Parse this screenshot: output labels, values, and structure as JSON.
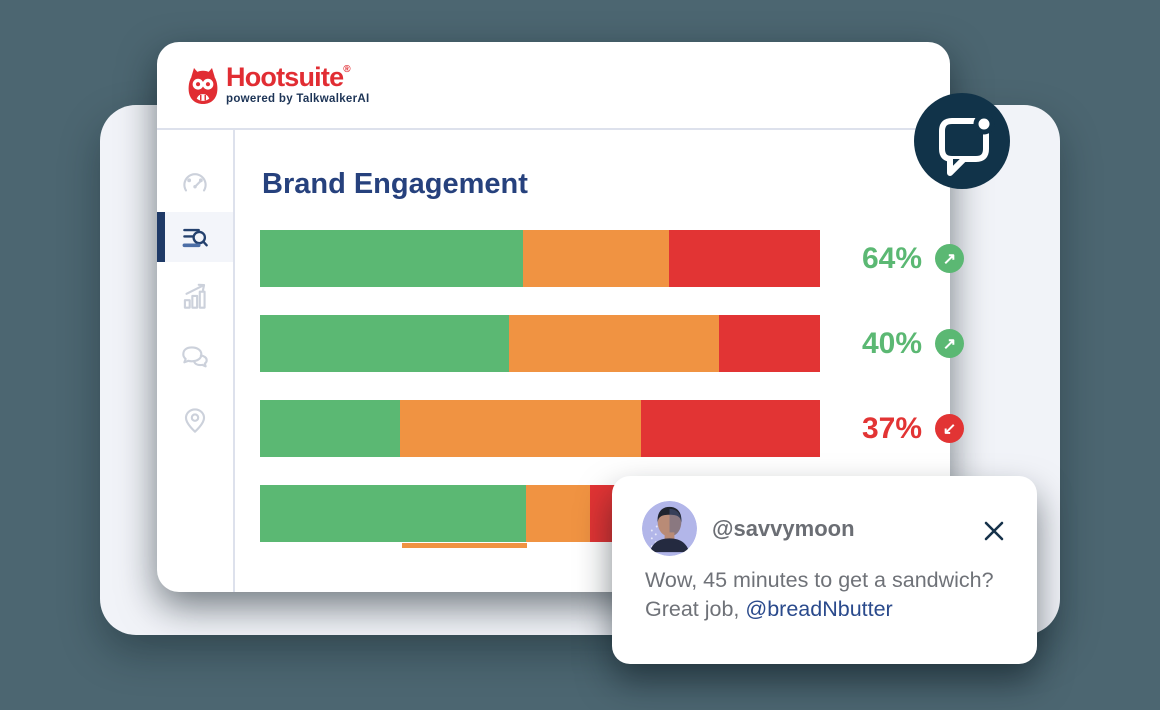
{
  "colors": {
    "background_slate": "#4c6671",
    "panel_gray": "#f1f3f8",
    "green": "#5bb873",
    "orange": "#f09342",
    "red": "#e23434",
    "brand_red": "#e12d33",
    "title_navy": "#26417d",
    "badge_navy": "#113349",
    "mention_blue": "#2a4a8c"
  },
  "header": {
    "brand": "Hootsuite",
    "registered": "®",
    "tagline": "powered by TalkwalkerAI"
  },
  "sidebar": {
    "selected_index": 1,
    "items": [
      {
        "icon": "speedometer-icon"
      },
      {
        "icon": "search-list-icon"
      },
      {
        "icon": "bar-chart-icon"
      },
      {
        "icon": "chat-bubbles-icon"
      },
      {
        "icon": "location-pin-icon"
      }
    ]
  },
  "main": {
    "title": "Brand Engagement"
  },
  "chart_data": {
    "type": "bar",
    "orientation": "horizontal-stacked",
    "segment_colors": [
      "#5bb873",
      "#f09342",
      "#e23434"
    ],
    "up_arrow": "↗",
    "down_arrow": "↙",
    "rows": [
      {
        "value": "64%",
        "trend": "up",
        "segments": [
          47,
          26,
          27
        ]
      },
      {
        "value": "40%",
        "trend": "up",
        "segments": [
          44.5,
          37.5,
          18
        ]
      },
      {
        "value": "37%",
        "trend": "down",
        "segments": [
          25,
          43,
          32
        ]
      },
      {
        "value": "",
        "trend": null,
        "segments": [
          47.5,
          11.5,
          41
        ]
      }
    ]
  },
  "notification_badge": {
    "icon": "chat-notification-icon"
  },
  "comment_card": {
    "username": "@savvymoon",
    "line1": "Wow, 45 minutes to get a sandwich?",
    "line2_prefix": "Great job, ",
    "mention": "@breadNbutter"
  }
}
